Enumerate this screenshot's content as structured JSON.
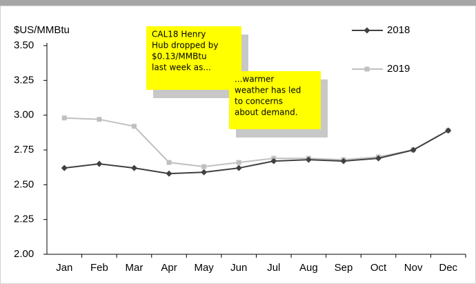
{
  "chart_data": {
    "type": "line",
    "y_axis_label": "$US/MMBtu",
    "categories": [
      "Jan",
      "Feb",
      "Mar",
      "Apr",
      "May",
      "Jun",
      "Jul",
      "Aug",
      "Sep",
      "Oct",
      "Nov",
      "Dec"
    ],
    "series": [
      {
        "name": "2018",
        "color": "#404040",
        "marker": "diamond",
        "values": [
          2.62,
          2.65,
          2.62,
          2.58,
          2.59,
          2.62,
          2.67,
          2.68,
          2.67,
          2.69,
          2.75,
          2.89
        ]
      },
      {
        "name": "2019",
        "color": "#c0c0c0",
        "marker": "square",
        "values": [
          2.98,
          2.97,
          2.92,
          2.66,
          2.63,
          2.66,
          2.69,
          2.69,
          2.68,
          2.7,
          2.75,
          2.89
        ]
      }
    ],
    "ylim": [
      2.0,
      3.5
    ],
    "yticks": [
      {
        "value": 2.0,
        "label": "2.00"
      },
      {
        "value": 2.25,
        "label": "2.25"
      },
      {
        "value": 2.5,
        "label": "2.50"
      },
      {
        "value": 2.75,
        "label": "2.75"
      },
      {
        "value": 3.0,
        "label": "3.00"
      },
      {
        "value": 3.25,
        "label": "3.25"
      },
      {
        "value": 3.5,
        "label": "3.50"
      }
    ],
    "grid": false,
    "legend": "upper right",
    "annotations": [
      {
        "lines": [
          "CAL18 Henry",
          "Hub dropped by",
          "$0.13/MMBtu",
          "last week as..."
        ]
      },
      {
        "lines": [
          "...warmer",
          "weather has led",
          "to concerns",
          "about demand."
        ]
      }
    ]
  }
}
